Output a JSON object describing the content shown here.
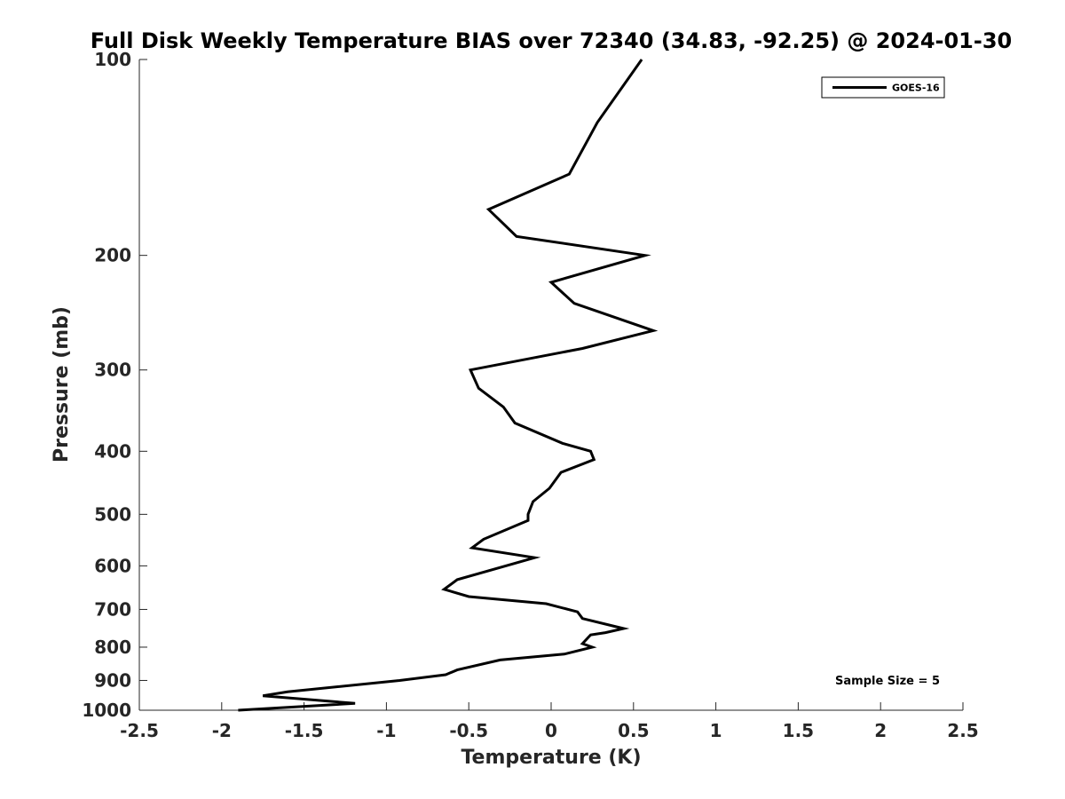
{
  "chart_data": {
    "type": "line",
    "title": "Full Disk Weekly Temperature BIAS over 72340 (34.83, -92.25) @ 2024-01-30",
    "xlabel": "Temperature (K)",
    "ylabel": "Pressure (mb)",
    "xlim": [
      -2.5,
      2.5
    ],
    "ylim": [
      100,
      1000
    ],
    "yscale": "log",
    "y_reversed": true,
    "x_ticks": [
      -2.5,
      -2,
      -1.5,
      -1,
      -0.5,
      0,
      0.5,
      1,
      1.5,
      2,
      2.5
    ],
    "x_tick_labels": [
      "-2.5",
      "-2",
      "-1.5",
      "-1",
      "-0.5",
      "0",
      "0.5",
      "1",
      "1.5",
      "2",
      "2.5"
    ],
    "y_ticks": [
      100,
      200,
      300,
      400,
      500,
      600,
      700,
      800,
      900,
      1000
    ],
    "y_tick_labels": [
      "100",
      "200",
      "300",
      "400",
      "500",
      "600",
      "700",
      "800",
      "900",
      "1000"
    ],
    "grid": false,
    "legend_position": "top-right",
    "annotation": "Sample Size = 5",
    "series": [
      {
        "name": "GOES-16",
        "color": "#000000",
        "points": [
          {
            "t": 0.55,
            "p": 100
          },
          {
            "t": 0.28,
            "p": 125
          },
          {
            "t": 0.11,
            "p": 150
          },
          {
            "t": -0.38,
            "p": 170
          },
          {
            "t": -0.21,
            "p": 187
          },
          {
            "t": 0.57,
            "p": 200
          },
          {
            "t": 0.0,
            "p": 220
          },
          {
            "t": 0.14,
            "p": 237
          },
          {
            "t": 0.62,
            "p": 261
          },
          {
            "t": 0.19,
            "p": 278
          },
          {
            "t": -0.49,
            "p": 300
          },
          {
            "t": -0.44,
            "p": 320
          },
          {
            "t": -0.29,
            "p": 342
          },
          {
            "t": -0.22,
            "p": 362
          },
          {
            "t": 0.07,
            "p": 389
          },
          {
            "t": 0.24,
            "p": 400
          },
          {
            "t": 0.26,
            "p": 412
          },
          {
            "t": 0.06,
            "p": 431
          },
          {
            "t": -0.01,
            "p": 456
          },
          {
            "t": -0.11,
            "p": 478
          },
          {
            "t": -0.14,
            "p": 500
          },
          {
            "t": -0.14,
            "p": 511
          },
          {
            "t": -0.41,
            "p": 546
          },
          {
            "t": -0.48,
            "p": 563
          },
          {
            "t": -0.1,
            "p": 583
          },
          {
            "t": -0.57,
            "p": 630
          },
          {
            "t": -0.65,
            "p": 652
          },
          {
            "t": -0.5,
            "p": 669
          },
          {
            "t": -0.03,
            "p": 686
          },
          {
            "t": 0.16,
            "p": 706
          },
          {
            "t": 0.19,
            "p": 723
          },
          {
            "t": 0.44,
            "p": 749
          },
          {
            "t": 0.33,
            "p": 760
          },
          {
            "t": 0.24,
            "p": 766
          },
          {
            "t": 0.19,
            "p": 790
          },
          {
            "t": 0.25,
            "p": 800
          },
          {
            "t": 0.08,
            "p": 820
          },
          {
            "t": -0.31,
            "p": 837
          },
          {
            "t": -0.57,
            "p": 867
          },
          {
            "t": -0.64,
            "p": 882
          },
          {
            "t": -0.92,
            "p": 900
          },
          {
            "t": -1.6,
            "p": 937
          },
          {
            "t": -1.75,
            "p": 950
          },
          {
            "t": -1.19,
            "p": 976
          },
          {
            "t": -1.9,
            "p": 1000
          }
        ]
      }
    ]
  }
}
